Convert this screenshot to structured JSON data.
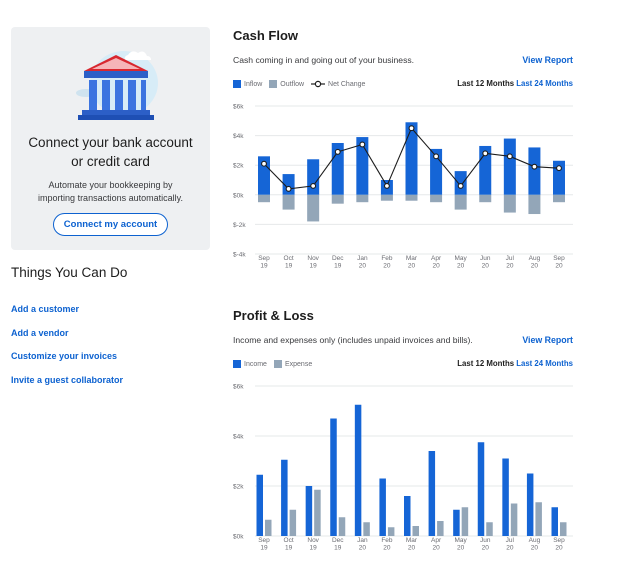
{
  "left": {
    "bank": {
      "title_line1": "Connect your bank account",
      "title_line2": "or credit card",
      "desc_line1": "Automate your bookkeeping by",
      "desc_line2": "importing transactions automatically.",
      "button": "Connect my account"
    },
    "things": {
      "title": "Things You Can Do",
      "links": [
        "Add a customer",
        "Add a vendor",
        "Customize your invoices",
        "Invite a guest collaborator"
      ]
    }
  },
  "cash_flow": {
    "title": "Cash Flow",
    "desc": "Cash coming in and going out of your business.",
    "view_report": "View Report",
    "range_a": "Last 12 Months",
    "range_b": "Last 24 Months",
    "legend": [
      "Inflow",
      "Outflow",
      "Net Change"
    ]
  },
  "profit_loss": {
    "title": "Profit & Loss",
    "desc": "Income and expenses only (includes unpaid invoices and bills).",
    "view_report": "View Report",
    "range_a": "Last 12 Months",
    "range_b": "Last 24 Months",
    "legend": [
      "Income",
      "Expense"
    ]
  },
  "colors": {
    "primary": "#1565d6",
    "secondary": "#93a6b8",
    "link": "#0d62d0",
    "line": "#1d1d1d"
  },
  "chart_data": [
    {
      "type": "bar",
      "chart": "cash_flow",
      "categories": [
        [
          "Sep",
          "19"
        ],
        [
          "Oct",
          "19"
        ],
        [
          "Nov",
          "19"
        ],
        [
          "Dec",
          "19"
        ],
        [
          "Jan",
          "20"
        ],
        [
          "Feb",
          "20"
        ],
        [
          "Mar",
          "20"
        ],
        [
          "Apr",
          "20"
        ],
        [
          "May",
          "20"
        ],
        [
          "Jun",
          "20"
        ],
        [
          "Jul",
          "20"
        ],
        [
          "Aug",
          "20"
        ],
        [
          "Sep",
          "20"
        ]
      ],
      "series": [
        {
          "name": "Inflow",
          "values": [
            2600,
            1400,
            2400,
            3500,
            3900,
            1000,
            4900,
            3100,
            1600,
            3300,
            3800,
            3200,
            2300
          ]
        },
        {
          "name": "Outflow",
          "values": [
            -500,
            -1000,
            -1800,
            -600,
            -500,
            -400,
            -400,
            -500,
            -1000,
            -500,
            -1200,
            -1300,
            -500
          ]
        },
        {
          "name": "Net Change",
          "values": [
            2100,
            400,
            600,
            2900,
            3400,
            600,
            4500,
            2600,
            600,
            2800,
            2600,
            1900,
            1800
          ]
        }
      ],
      "yticks": [
        -4000,
        -2000,
        0,
        2000,
        4000,
        6000
      ],
      "ytick_labels": [
        "$-4k",
        "$-2k",
        "$0k",
        "$2k",
        "$4k",
        "$6k"
      ],
      "ylim": [
        -4000,
        6000
      ]
    },
    {
      "type": "bar",
      "chart": "profit_loss",
      "categories": [
        [
          "Sep",
          "19"
        ],
        [
          "Oct",
          "19"
        ],
        [
          "Nov",
          "19"
        ],
        [
          "Dec",
          "19"
        ],
        [
          "Jan",
          "20"
        ],
        [
          "Feb",
          "20"
        ],
        [
          "Mar",
          "20"
        ],
        [
          "Apr",
          "20"
        ],
        [
          "May",
          "20"
        ],
        [
          "Jun",
          "20"
        ],
        [
          "Jul",
          "20"
        ],
        [
          "Aug",
          "20"
        ],
        [
          "Sep",
          "20"
        ]
      ],
      "series": [
        {
          "name": "Income",
          "values": [
            2450,
            3050,
            2000,
            4700,
            5250,
            2300,
            1600,
            3400,
            1050,
            3750,
            3100,
            2500,
            1150
          ]
        },
        {
          "name": "Expense",
          "values": [
            650,
            1050,
            1850,
            750,
            550,
            350,
            400,
            600,
            1150,
            550,
            1300,
            1350,
            550
          ]
        }
      ],
      "yticks": [
        0,
        2000,
        4000,
        6000
      ],
      "ytick_labels": [
        "$0k",
        "$2k",
        "$4k",
        "$6k"
      ],
      "ylim": [
        0,
        6000
      ]
    }
  ]
}
